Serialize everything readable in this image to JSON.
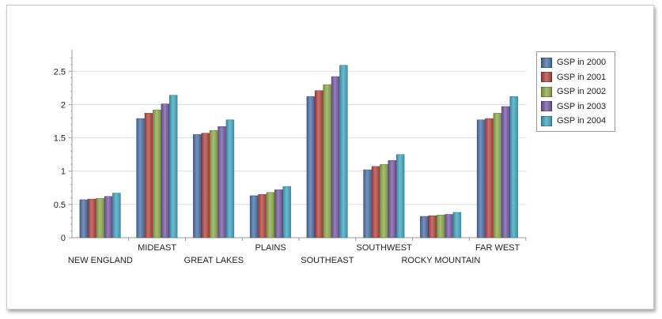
{
  "chart_data": {
    "type": "bar",
    "categories": [
      "NEW ENGLAND",
      "MIDEAST",
      "GREAT LAKES",
      "PLAINS",
      "SOUTHEAST",
      "SOUTHWEST",
      "ROCKY MOUNTAIN",
      "FAR WEST"
    ],
    "series": [
      {
        "name": "GSP in 2000",
        "color": "#4a6fa5",
        "values": [
          0.57,
          1.79,
          1.55,
          0.63,
          2.12,
          1.02,
          0.32,
          1.77
        ]
      },
      {
        "name": "GSP in 2001",
        "color": "#b2433f",
        "values": [
          0.58,
          1.87,
          1.57,
          0.65,
          2.21,
          1.07,
          0.33,
          1.79
        ]
      },
      {
        "name": "GSP in 2002",
        "color": "#8aa84a",
        "values": [
          0.59,
          1.92,
          1.61,
          0.68,
          2.3,
          1.1,
          0.34,
          1.87
        ]
      },
      {
        "name": "GSP in 2003",
        "color": "#7358a0",
        "values": [
          0.62,
          2.01,
          1.67,
          0.72,
          2.42,
          1.16,
          0.35,
          1.97
        ]
      },
      {
        "name": "GSP in 2004",
        "color": "#3fa3bf",
        "values": [
          0.67,
          2.14,
          1.77,
          0.77,
          2.59,
          1.25,
          0.38,
          2.12
        ]
      }
    ],
    "y_ticks": [
      "0",
      "0.5",
      "1",
      "1.5",
      "2",
      "2.5"
    ],
    "ylim": [
      0,
      2.8
    ],
    "grid": true,
    "legend_position": "right"
  }
}
